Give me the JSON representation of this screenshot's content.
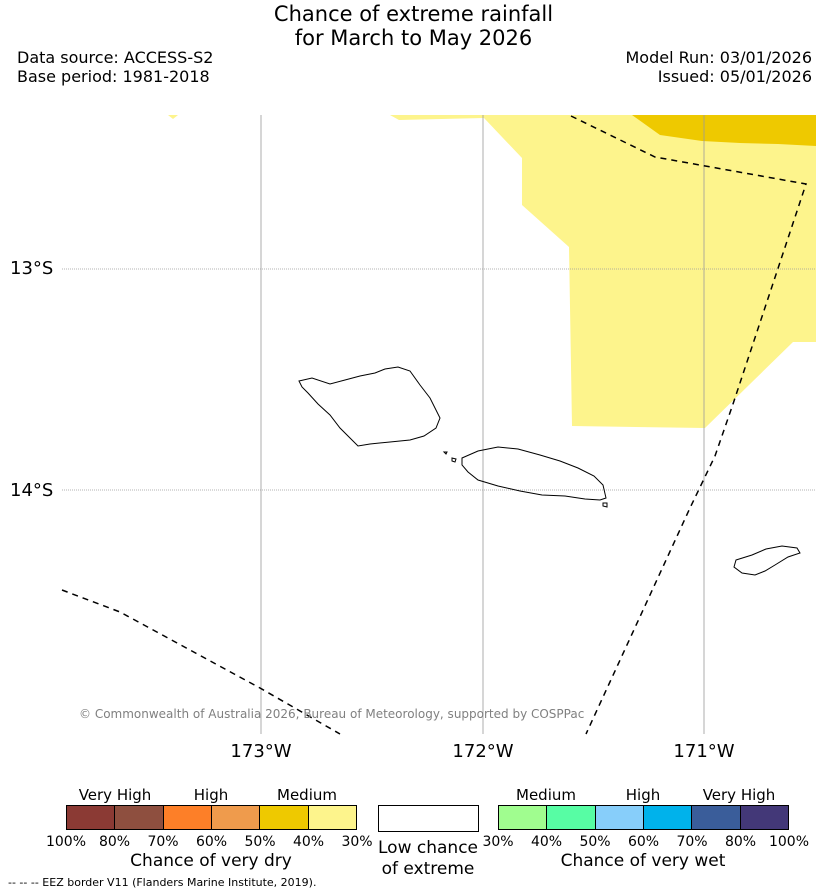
{
  "title": {
    "line1": "Chance of extreme rainfall",
    "line2": "for March to May 2026"
  },
  "header": {
    "data_source": "Data source: ACCESS-S2",
    "base_period": "Base period: 1981-2018",
    "model_run": "Model Run: 03/01/2026",
    "issued": "Issued: 05/01/2026"
  },
  "map": {
    "lat_labels": [
      "13°S",
      "14°S"
    ],
    "lon_labels": [
      "173°W",
      "172°W",
      "171°W"
    ],
    "copyright": "© Commonwealth of Australia 2026, Bureau of Meteorology, supported by COSPPac",
    "colors": {
      "medium_dry": "#fdf48c",
      "high_dry": "#eec900",
      "gridline": "#9a9a9a",
      "coastline": "#000000"
    }
  },
  "legend": {
    "dry": {
      "categories": [
        "Very High",
        "High",
        "Medium"
      ],
      "ticks": [
        "100%",
        "80%",
        "70%",
        "60%",
        "50%",
        "40%",
        "30%"
      ],
      "colors": [
        "#8b3a34",
        "#8e4f3f",
        "#fd7f28",
        "#ef9b4c",
        "#eec900",
        "#fdf48c"
      ],
      "title": "Chance of very dry"
    },
    "low": {
      "line1": "Low chance",
      "line2": "of extreme"
    },
    "wet": {
      "categories": [
        "Medium",
        "High",
        "Very High"
      ],
      "ticks": [
        "30%",
        "40%",
        "50%",
        "60%",
        "70%",
        "80%",
        "100%"
      ],
      "colors": [
        "#a0fd8f",
        "#57fda4",
        "#87cefa",
        "#00b2eb",
        "#3a5d9a",
        "#433878"
      ],
      "title": "Chance of very wet"
    }
  },
  "footer": {
    "eez": "--  --  -- EEZ border V11 (Flanders Marine Institute, 2019)."
  }
}
